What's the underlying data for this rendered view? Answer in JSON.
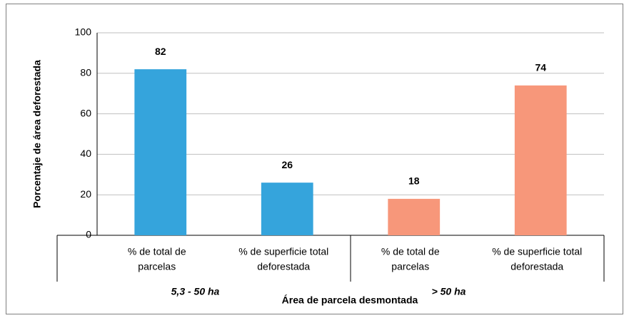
{
  "chart_data": {
    "type": "bar",
    "xlabel": "Área de parcela desmontada",
    "ylabel": "Porcentaje de área deforestada",
    "categories": [
      [
        "% de total de",
        "parcelas"
      ],
      [
        "% de superficie total",
        "deforestada"
      ],
      [
        "% de total de",
        "parcelas"
      ],
      [
        "% de superficie total",
        "deforestada"
      ]
    ],
    "groups": [
      "5,3 - 50 ha",
      "> 50 ha"
    ],
    "values": [
      82,
      26,
      18,
      74
    ],
    "colors": [
      "#35a4dc",
      "#35a4dc",
      "#f7977a",
      "#f7977a"
    ],
    "ylim": [
      0,
      100
    ],
    "yticks": [
      0,
      20,
      40,
      60,
      80,
      100
    ],
    "grid": true
  }
}
